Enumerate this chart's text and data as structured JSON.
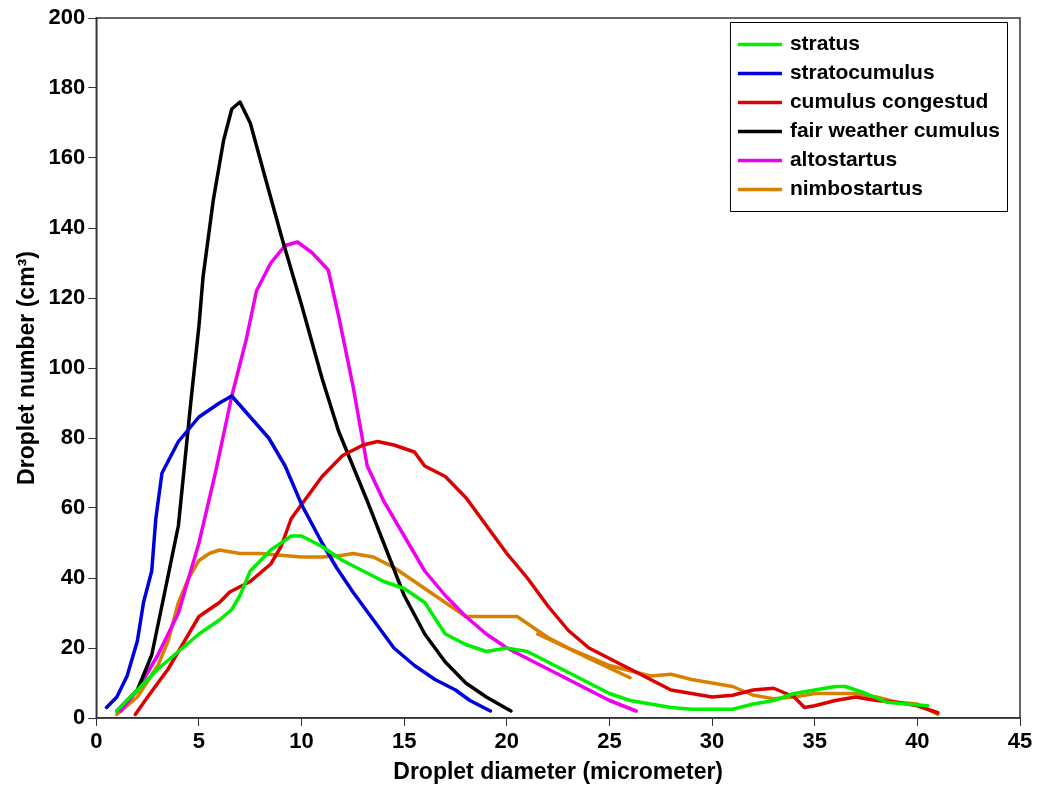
{
  "chart_data": {
    "type": "line",
    "xlabel": "Droplet diameter (micrometer)",
    "ylabel": "Droplet number (cm³)",
    "xlim": [
      0,
      45
    ],
    "xticks": [
      0,
      5,
      10,
      15,
      20,
      25,
      30,
      35,
      40,
      45
    ],
    "ylim": [
      0,
      200
    ],
    "yticks": [
      0,
      20,
      40,
      60,
      80,
      100,
      120,
      140,
      160,
      180,
      200
    ],
    "grid": false,
    "legend": "top right",
    "marker": "none",
    "line_style": "solid",
    "series": [
      {
        "name": "stratus",
        "color": "#00ee00",
        "x": [
          1,
          2,
          3,
          4,
          5,
          6,
          6.6,
          7,
          7.5,
          8.5,
          9.5,
          10,
          11,
          12,
          13,
          14,
          15,
          16,
          17,
          18,
          19,
          20,
          21,
          22,
          23,
          24,
          25,
          26,
          27,
          28,
          29,
          30,
          31,
          32,
          33,
          34,
          35,
          36,
          36.5,
          37.5,
          38.5,
          39.5,
          40.5
        ],
        "values": [
          2,
          8,
          14,
          19,
          24,
          28,
          31,
          35,
          42,
          48,
          52,
          52,
          49,
          45,
          42,
          39,
          37,
          33,
          24,
          21,
          19,
          20,
          19,
          16,
          13,
          10,
          7,
          5,
          4,
          3,
          2.5,
          2.5,
          2.5,
          4,
          5,
          7,
          8,
          9,
          9,
          7,
          4.5,
          4,
          3.5
        ]
      },
      {
        "name": "stratocumulus",
        "color": "#0000dd",
        "x": [
          0.5,
          1,
          1.5,
          2,
          2.3,
          2.7,
          2.9,
          3.2,
          4,
          5,
          6,
          6.6,
          7.5,
          8.4,
          9.2,
          10,
          11,
          11.7,
          12.5,
          13.5,
          14.5,
          15.5,
          16.5,
          17.5,
          18.2,
          19.2
        ],
        "values": [
          3,
          6,
          12,
          22,
          33,
          42,
          57,
          70,
          79,
          86,
          90,
          92,
          86,
          80,
          72,
          61,
          50,
          43,
          36,
          28,
          20,
          15,
          11,
          8,
          5,
          2
        ]
      },
      {
        "name": "cumulus congestud",
        "color": "#dd0000",
        "x": [
          1.9,
          2.5,
          3.5,
          4.5,
          5,
          6,
          6.5,
          7.5,
          8.5,
          9,
          9.5,
          10,
          10.5,
          11,
          12,
          13,
          13.7,
          14.5,
          15.5,
          16,
          17,
          18,
          19,
          20,
          21,
          22,
          23,
          24,
          25,
          26,
          27,
          28,
          29,
          30,
          31,
          32,
          33,
          34,
          34.5,
          35,
          36,
          37,
          38,
          39,
          40,
          41
        ],
        "values": [
          1,
          6,
          14,
          24,
          29,
          33,
          36,
          39,
          44,
          49,
          57,
          61,
          65,
          69,
          75,
          78,
          79,
          78,
          76,
          72,
          69,
          63,
          55,
          47,
          40,
          32,
          25,
          20,
          17,
          14,
          11,
          8,
          7,
          6,
          6.5,
          8,
          8.5,
          6,
          3,
          3.5,
          5,
          6,
          5,
          4.5,
          3.5,
          1.5
        ]
      },
      {
        "name": "fair weather cumulus",
        "color": "#000000",
        "x": [
          1,
          2,
          2.7,
          3.3,
          4,
          4.6,
          5,
          5.2,
          5.7,
          6.2,
          6.6,
          7,
          7.5,
          8.2,
          9,
          10,
          11,
          11.8,
          12.5,
          13.2,
          14,
          15,
          16,
          17,
          18,
          19,
          20.2
        ],
        "values": [
          2,
          8,
          18,
          35,
          55,
          90,
          112,
          126,
          148,
          165,
          174,
          176,
          170,
          155,
          138,
          118,
          97,
          82,
          72,
          62,
          50,
          35,
          24,
          16,
          10,
          6,
          2
        ]
      },
      {
        "name": "altostartus",
        "color": "#ee00ee",
        "x": [
          1.2,
          2,
          3,
          4,
          5,
          5.8,
          6.6,
          7.3,
          7.8,
          8.5,
          9.2,
          9.8,
          10.5,
          11.3,
          11.8,
          12.5,
          13.2,
          14,
          15,
          16,
          17,
          18,
          19,
          20,
          21,
          22,
          23,
          24,
          25,
          26.3
        ],
        "values": [
          2,
          8,
          18,
          30,
          50,
          70,
          92,
          108,
          122,
          130,
          135,
          136,
          133,
          128,
          115,
          95,
          72,
          62,
          52,
          42,
          35,
          29,
          24,
          20,
          17,
          14,
          11,
          8,
          5,
          2
        ]
      },
      {
        "name": "nimbostartus",
        "color": "#d98000",
        "x": [
          1,
          2,
          3,
          3.5,
          4,
          4.5,
          5,
          5.5,
          6,
          7,
          8,
          9,
          10,
          11,
          12,
          12.5,
          13.5,
          14.5,
          15.5,
          16.5,
          17.5,
          18,
          19,
          20,
          20.5,
          22,
          24,
          26,
          21.5,
          23,
          25,
          27,
          28,
          29,
          30,
          31,
          32,
          33,
          34,
          35,
          36,
          37,
          38,
          39,
          40,
          41
        ],
        "values": [
          1,
          6,
          15,
          22,
          33,
          40,
          45,
          47,
          48,
          47,
          47,
          46.5,
          46,
          46,
          46.5,
          47,
          46,
          43,
          39,
          35,
          31,
          29,
          29,
          29,
          29,
          23,
          17,
          11.5,
          24,
          20,
          15,
          12,
          12.5,
          11,
          10,
          9,
          6.5,
          5.5,
          6,
          7,
          7,
          7,
          6,
          4.5,
          4,
          1
        ]
      }
    ]
  }
}
